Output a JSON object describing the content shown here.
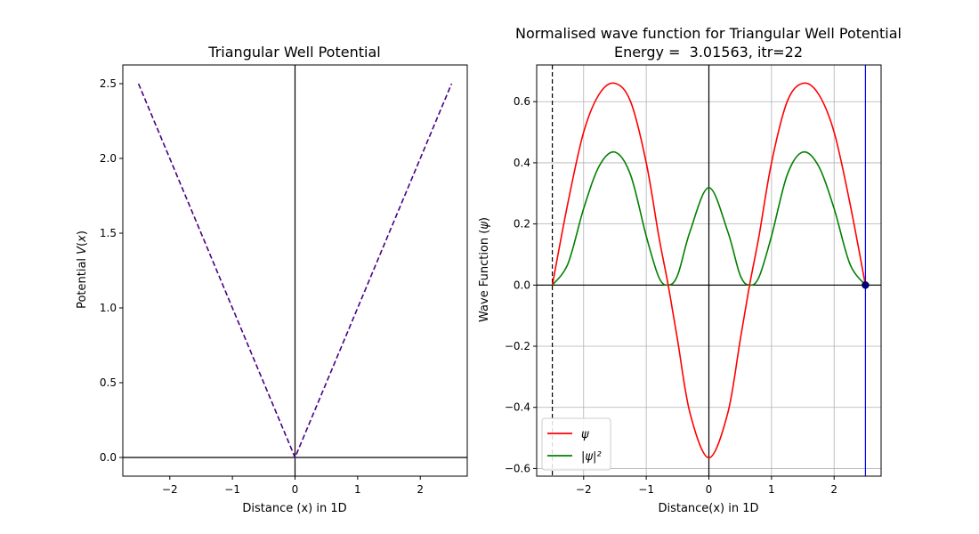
{
  "chart_data": [
    {
      "type": "line",
      "title": "Triangular Well Potential",
      "xlabel": "Distance (x) in 1D",
      "ylabel": "Potential V(x)",
      "xlim": [
        -2.75,
        2.75
      ],
      "ylim": [
        -0.125,
        2.625
      ],
      "x_ticks": [
        -2,
        -1,
        0,
        1,
        2
      ],
      "x_tick_labels": [
        "−2",
        "−1",
        "0",
        "1",
        "2"
      ],
      "y_ticks": [
        0.0,
        0.5,
        1.0,
        1.5,
        2.0,
        2.5
      ],
      "y_tick_labels": [
        "0.0",
        "0.5",
        "1.0",
        "1.5",
        "2.0",
        "2.5"
      ],
      "grid": false,
      "series": [
        {
          "x": [
            -2.5,
            0,
            2.5
          ],
          "y": [
            2.5,
            0,
            2.5
          ],
          "color": "#4b0082",
          "style": "dashed"
        }
      ],
      "reference_lines": {
        "x_zero": true,
        "y_zero": true
      }
    },
    {
      "type": "line",
      "title": "Normalised wave function for Triangular Well Potential",
      "subtitle": "Energy =  3.01563, itr=22",
      "xlabel": "Distance(x) in 1D",
      "ylabel": "Wave Function (ψ)",
      "xlim": [
        -2.75,
        2.75
      ],
      "ylim": [
        -0.625,
        0.72
      ],
      "x_ticks": [
        -2,
        -1,
        0,
        1,
        2
      ],
      "x_tick_labels": [
        "−2",
        "−1",
        "0",
        "1",
        "2"
      ],
      "y_ticks": [
        -0.6,
        -0.4,
        -0.2,
        0.0,
        0.2,
        0.4,
        0.6
      ],
      "y_tick_labels": [
        "−0.6",
        "−0.4",
        "−0.2",
        "0.0",
        "0.2",
        "0.4",
        "0.6"
      ],
      "grid": true,
      "legend_position": "lower-left",
      "series": [
        {
          "name": "ψ",
          "color": "#ff0000",
          "x": [
            -2.5,
            -2.25,
            -2.0,
            -1.75,
            -1.5,
            -1.25,
            -1.0,
            -0.8,
            -0.65,
            -0.5,
            -0.3,
            0.0,
            0.3,
            0.5,
            0.65,
            0.8,
            1.0,
            1.25,
            1.5,
            1.75,
            2.0,
            2.25,
            2.5
          ],
          "y": [
            0.0,
            0.27,
            0.5,
            0.625,
            0.66,
            0.6,
            0.4,
            0.16,
            0.0,
            -0.18,
            -0.42,
            -0.565,
            -0.42,
            -0.18,
            0.0,
            0.16,
            0.4,
            0.6,
            0.66,
            0.625,
            0.5,
            0.27,
            0.0
          ]
        },
        {
          "name": "|ψ|²",
          "color": "#008000",
          "x": [
            -2.5,
            -2.25,
            -2.0,
            -1.75,
            -1.5,
            -1.25,
            -1.0,
            -0.8,
            -0.65,
            -0.5,
            -0.3,
            0.0,
            0.3,
            0.5,
            0.65,
            0.8,
            1.0,
            1.25,
            1.5,
            1.75,
            2.0,
            2.25,
            2.5
          ],
          "y": [
            0.0,
            0.07,
            0.25,
            0.39,
            0.435,
            0.36,
            0.16,
            0.026,
            0.0,
            0.032,
            0.176,
            0.319,
            0.176,
            0.032,
            0.0,
            0.026,
            0.16,
            0.36,
            0.435,
            0.39,
            0.25,
            0.07,
            0.0
          ]
        }
      ],
      "vertical_lines": [
        {
          "x": -2.5,
          "color": "#000000",
          "style": "dashed"
        },
        {
          "x": 2.5,
          "color": "#0000ff",
          "style": "solid"
        }
      ],
      "markers": [
        {
          "x": 2.5,
          "y": 0.0,
          "color": "#000080"
        }
      ],
      "reference_lines": {
        "x_zero": true,
        "y_zero": true
      }
    }
  ]
}
